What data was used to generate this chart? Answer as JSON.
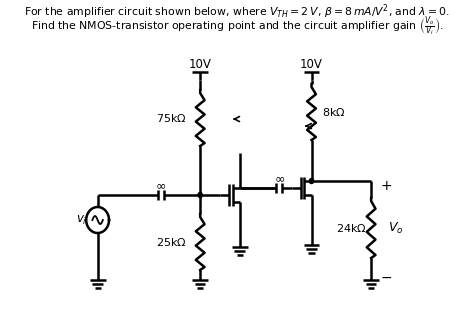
{
  "bg_color": "#ffffff",
  "lw": 1.8,
  "title1": "For the amplifier circuit shown below, where $V_{TH} = 2\\,V$, $\\beta = 8\\,mA/V^2$, and $\\lambda = 0.$",
  "title2": "Find the NMOS-transistor operating point and the circuit amplifier gain $\\left(\\frac{V_o}{V_i}\\right).$"
}
